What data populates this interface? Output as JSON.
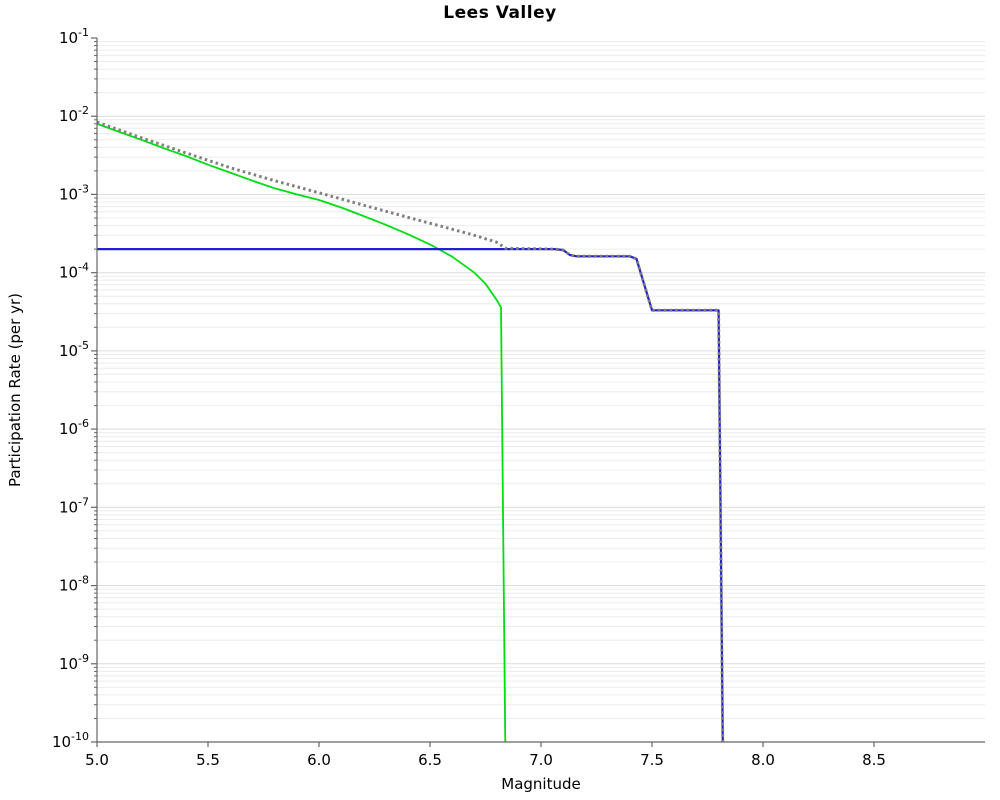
{
  "chart_data": {
    "type": "line",
    "title": "Lees Valley",
    "xlabel": "Magnitude",
    "ylabel": "Participation Rate (per yr)",
    "xlim": [
      5.0,
      9.0
    ],
    "ylim": [
      1e-10,
      0.1
    ],
    "x_tick_labels": [
      "5.0",
      "5.5",
      "6.0",
      "6.5",
      "7.0",
      "7.5",
      "8.0",
      "8.5"
    ],
    "y_tick_exponents": [
      -1,
      -2,
      -3,
      -4,
      -5,
      -6,
      -7,
      -8,
      -9,
      -10
    ],
    "grid": "horizontal log minor gridlines on",
    "legend": "none",
    "colors": {
      "gutenberg_richter": "#00dd11",
      "characteristic": "#2222cc",
      "total_dotted": "#7f7f7f",
      "grid_minor": "#ececec",
      "grid_major": "#dcdcdc",
      "axis": "#666666"
    },
    "series": [
      {
        "name": "gutenberg-richter-curve",
        "color": "#00dd11",
        "style": "solid",
        "width": 1.8,
        "points": [
          [
            5.0,
            0.008
          ],
          [
            5.1,
            0.0063
          ],
          [
            5.2,
            0.005
          ],
          [
            5.3,
            0.0039
          ],
          [
            5.4,
            0.0031
          ],
          [
            5.5,
            0.0024
          ],
          [
            5.6,
            0.0019
          ],
          [
            5.7,
            0.0015
          ],
          [
            5.8,
            0.0012
          ],
          [
            5.9,
            0.001
          ],
          [
            6.0,
            0.00085
          ],
          [
            6.1,
            0.00068
          ],
          [
            6.2,
            0.00053
          ],
          [
            6.3,
            0.00041
          ],
          [
            6.4,
            0.00031
          ],
          [
            6.5,
            0.00023
          ],
          [
            6.6,
            0.00016
          ],
          [
            6.7,
            0.0001
          ],
          [
            6.75,
            7.2e-05
          ],
          [
            6.8,
            4.5e-05
          ],
          [
            6.82,
            3.6e-05
          ],
          [
            6.84,
            5e-11
          ]
        ]
      },
      {
        "name": "characteristic-curve",
        "color": "#2222cc",
        "style": "solid",
        "width": 2.2,
        "points": [
          [
            5.0,
            0.0002
          ],
          [
            7.06,
            0.0002
          ],
          [
            7.1,
            0.000195
          ],
          [
            7.13,
            0.000168
          ],
          [
            7.16,
            0.000162
          ],
          [
            7.4,
            0.000162
          ],
          [
            7.43,
            0.00015
          ],
          [
            7.5,
            3.3e-05
          ],
          [
            7.8,
            3.3e-05
          ],
          [
            7.82,
            5e-11
          ]
        ]
      },
      {
        "name": "total-dotted-curve",
        "color": "#7f7f7f",
        "style": "dotted",
        "width": 3.0,
        "points": [
          [
            5.0,
            0.0084
          ],
          [
            5.2,
            0.0053
          ],
          [
            5.4,
            0.0034
          ],
          [
            5.6,
            0.0022
          ],
          [
            5.8,
            0.0015
          ],
          [
            6.0,
            0.00105
          ],
          [
            6.2,
            0.00073
          ],
          [
            6.4,
            0.00051
          ],
          [
            6.6,
            0.00036
          ],
          [
            6.7,
            0.0003
          ],
          [
            6.8,
            0.000245
          ],
          [
            6.84,
            0.000205
          ],
          [
            7.06,
            0.0002
          ],
          [
            7.1,
            0.000195
          ],
          [
            7.13,
            0.000168
          ],
          [
            7.16,
            0.000162
          ],
          [
            7.4,
            0.000162
          ],
          [
            7.43,
            0.00015
          ],
          [
            7.5,
            3.3e-05
          ],
          [
            7.8,
            3.3e-05
          ],
          [
            7.82,
            5e-11
          ]
        ]
      }
    ]
  }
}
